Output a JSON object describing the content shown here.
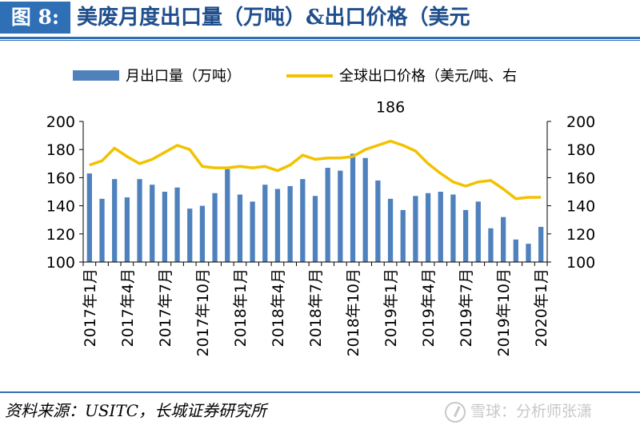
{
  "header": {
    "figure_label": "图 8:",
    "title": "美废月度出口量（万吨）&出口价格（美元"
  },
  "footer": {
    "source": "资料来源：USITC，长城证券研究所",
    "watermark": "雪球：分析师张潇"
  },
  "colors": {
    "bar": "#4f81bd",
    "line": "#f2c200",
    "title_bar": "#2f6fb5",
    "title_text": "#1f4e8c"
  },
  "chart_data": {
    "type": "bar+line",
    "x": [
      "2017年1月",
      "2017年2月",
      "2017年3月",
      "2017年4月",
      "2017年5月",
      "2017年6月",
      "2017年7月",
      "2017年8月",
      "2017年9月",
      "2017年10月",
      "2017年11月",
      "2017年12月",
      "2018年1月",
      "2018年2月",
      "2018年3月",
      "2018年4月",
      "2018年5月",
      "2018年6月",
      "2018年7月",
      "2018年8月",
      "2018年9月",
      "2018年10月",
      "2018年11月",
      "2018年12月",
      "2019年1月",
      "2019年2月",
      "2019年3月",
      "2019年4月",
      "2019年5月",
      "2019年6月",
      "2019年7月",
      "2019年8月",
      "2019年9月",
      "2019年10月",
      "2019年11月",
      "2019年12月",
      "2020年1月"
    ],
    "x_tick_labels": [
      "2017年1月",
      "2017年4月",
      "2017年7月",
      "2017年10月",
      "2018年1月",
      "2018年4月",
      "2018年7月",
      "2018年10月",
      "2019年1月",
      "2019年4月",
      "2019年7月",
      "2019年10月",
      "2020年1月"
    ],
    "x_tick_every": 3,
    "series": [
      {
        "name": "月出口量（万吨）",
        "type": "bar",
        "axis": "left",
        "values": [
          163,
          145,
          159,
          146,
          159,
          155,
          150,
          153,
          138,
          140,
          149,
          166,
          148,
          143,
          155,
          152,
          154,
          159,
          147,
          167,
          165,
          177,
          174,
          158,
          145,
          137,
          147,
          149,
          150,
          148,
          137,
          143,
          124,
          132,
          116,
          113,
          125
        ]
      },
      {
        "name": "全球出口价格（美元/吨、右",
        "type": "line",
        "axis": "right",
        "values": [
          169,
          172,
          181,
          175,
          170,
          173,
          178,
          183,
          180,
          168,
          167,
          167,
          168,
          167,
          168,
          165,
          169,
          176,
          173,
          174,
          174,
          175,
          180,
          183,
          186,
          183,
          179,
          170,
          163,
          157,
          154,
          157,
          158,
          152,
          145,
          146,
          146
        ]
      }
    ],
    "annotations": [
      {
        "text": "186",
        "x": "2019年1月"
      }
    ],
    "ylim_left": [
      100,
      200
    ],
    "ylim_right": [
      100,
      200
    ],
    "y_ticks_left": [
      "100",
      "120",
      "140",
      "160",
      "180",
      "200"
    ],
    "y_ticks_right": [
      "100",
      "120",
      "140",
      "160",
      "180",
      "200"
    ],
    "grid": false,
    "legend": "top"
  }
}
